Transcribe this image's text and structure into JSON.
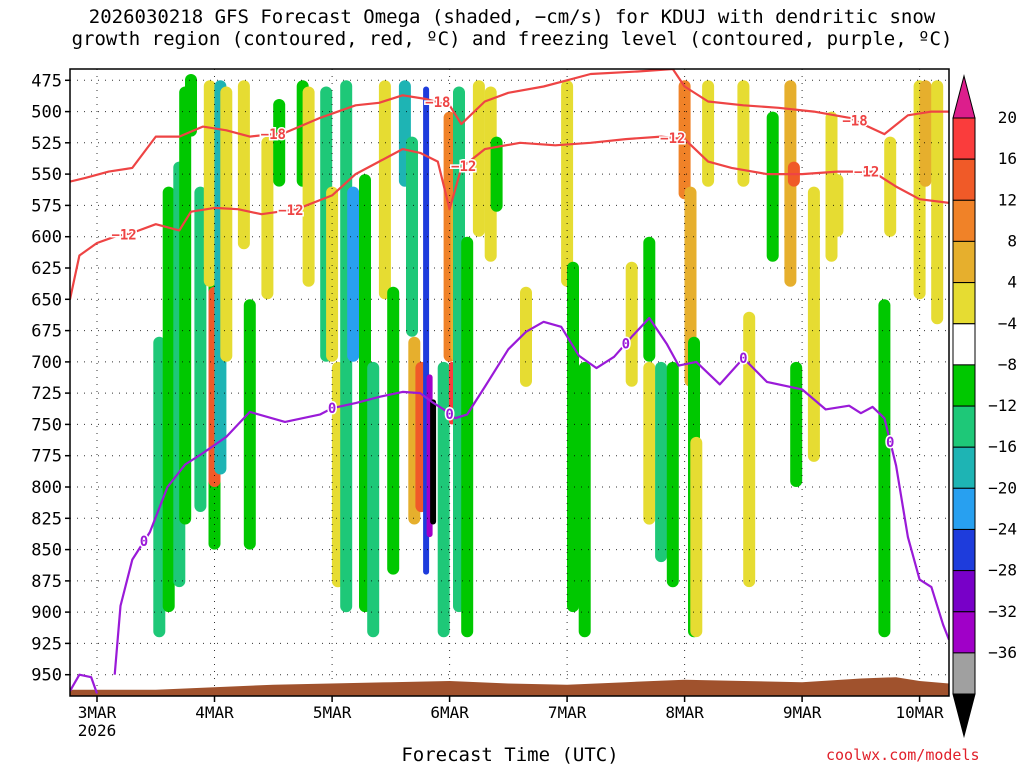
{
  "title_line1": "2026030218 GFS Forecast Omega (shaded, −cm/s) for KDUJ with dendritic snow",
  "title_line2": "growth region (contoured, red, ºC) and freezing level (contoured, purple, ºC)",
  "credit": "coolwx.com/models",
  "colors": {
    "omega_pos_4": "#e6dc32",
    "omega_pos_8": "#e6af2d",
    "omega_pos_12": "#f08228",
    "omega_pos_16": "#f05a28",
    "omega_pos_20": "#fa3c3c",
    "omega_pos_top": "#dc1e8c",
    "omega_neg_4": "#00c800",
    "omega_neg_8": "#1ec878",
    "omega_neg_12": "#1eb4b4",
    "omega_neg_16": "#28a0f0",
    "omega_neg_20": "#1e3cdc",
    "omega_neg_24": "#7800c8",
    "omega_neg_28": "#a000c8",
    "omega_neg_32": "#a0a0a0",
    "omega_neg_bottom": "#000000",
    "dgz_contour": "#ee4444",
    "freezing_contour": "#9a1ad8",
    "terrain": "#a0522d"
  },
  "chart_data": {
    "type": "heatmap",
    "title": "2026030218 GFS Forecast Omega (shaded, −cm/s) for KDUJ with dendritic snow growth region (contoured, red, ºC) and freezing level (contoured, purple, ºC)",
    "xlabel": "Forecast Time (UTC)",
    "ylabel": "",
    "x_ticks": [
      "3MAR\n2026",
      "4MAR",
      "5MAR",
      "6MAR",
      "7MAR",
      "8MAR",
      "9MAR",
      "10MAR"
    ],
    "x_tick_days": [
      3,
      4,
      5,
      6,
      7,
      8,
      9,
      10
    ],
    "xlim_days": [
      2.77,
      10.25
    ],
    "y_ticks": [
      475,
      500,
      525,
      550,
      575,
      600,
      625,
      650,
      675,
      700,
      725,
      750,
      775,
      800,
      825,
      850,
      875,
      900,
      925,
      950
    ],
    "ylim": [
      967,
      466
    ],
    "grid": true,
    "colorbar": {
      "labels": [
        "20",
        "16",
        "12",
        "8",
        "4",
        "−4",
        "−8",
        "−12",
        "−16",
        "−20",
        "−24",
        "−28",
        "−32",
        "−36"
      ],
      "units": "−cm/s"
    },
    "contours": [
      {
        "name": "-12",
        "label": "−12",
        "x": [
          2.77,
          2.85,
          3.0,
          3.15,
          3.3,
          3.5,
          3.7,
          3.8,
          4.0,
          4.2,
          4.4,
          4.7,
          5.0,
          5.2,
          5.4,
          5.6,
          5.75,
          5.9,
          6.0,
          6.1,
          6.3,
          6.6,
          6.9,
          7.2,
          7.5,
          7.8,
          8.0,
          8.2,
          8.4,
          8.7,
          9.0,
          9.3,
          9.6,
          9.8,
          10.0,
          10.25
        ],
        "y": [
          650,
          615,
          605,
          600,
          597,
          590,
          595,
          580,
          577,
          578,
          582,
          578,
          567,
          550,
          540,
          530,
          533,
          540,
          578,
          545,
          530,
          525,
          527,
          525,
          522,
          520,
          522,
          540,
          545,
          550,
          550,
          548,
          548,
          560,
          570,
          573
        ],
        "label_days": [
          3.23,
          4.65,
          6.12,
          7.9,
          9.55
        ]
      },
      {
        "name": "-18",
        "label": "−18",
        "x": [
          2.77,
          2.9,
          3.1,
          3.3,
          3.5,
          3.7,
          3.9,
          4.1,
          4.3,
          4.6,
          4.9,
          5.2,
          5.4,
          5.6,
          5.8,
          6.0,
          6.1,
          6.3,
          6.5,
          6.8,
          7.0,
          7.2,
          7.6,
          7.9,
          8.0,
          8.2,
          8.5,
          8.8,
          9.1,
          9.4,
          9.7,
          9.9,
          10.1,
          10.25
        ],
        "y": [
          556,
          553,
          548,
          545,
          520,
          520,
          512,
          515,
          520,
          517,
          505,
          495,
          493,
          487,
          490,
          495,
          510,
          492,
          485,
          480,
          475,
          470,
          468,
          466,
          480,
          492,
          495,
          497,
          500,
          505,
          518,
          503,
          500,
          500
        ],
        "label_days": [
          4.5,
          5.9,
          9.45
        ]
      },
      {
        "name": "0",
        "label": "0",
        "x": [
          3.15,
          3.2,
          3.3,
          3.45,
          3.6,
          3.75,
          3.9,
          4.1,
          4.3,
          4.6,
          4.9,
          5.0,
          5.2,
          5.4,
          5.6,
          5.75,
          5.85,
          5.95,
          6.05,
          6.15,
          6.3,
          6.5,
          6.65,
          6.8,
          6.95,
          7.1,
          7.25,
          7.4,
          7.55,
          7.7,
          7.85,
          7.95,
          8.1,
          8.3,
          8.5,
          8.7,
          9.0,
          9.2,
          9.4,
          9.5,
          9.6,
          9.7,
          9.8,
          9.9,
          10.0,
          10.1,
          10.2,
          10.25
        ],
        "y": [
          950,
          895,
          858,
          836,
          800,
          782,
          773,
          760,
          740,
          748,
          742,
          737,
          733,
          728,
          724,
          725,
          732,
          738,
          745,
          742,
          720,
          690,
          676,
          668,
          672,
          695,
          705,
          696,
          680,
          665,
          686,
          703,
          700,
          718,
          697,
          716,
          722,
          738,
          735,
          741,
          736,
          745,
          783,
          840,
          874,
          880,
          910,
          922
        ],
        "label_days": [
          3.4,
          5.0,
          6.0,
          7.5,
          8.5,
          9.75
        ]
      },
      {
        "name": "0_low",
        "label": "",
        "x": [
          2.77,
          2.85,
          2.95,
          3.0
        ],
        "y": [
          963,
          950,
          952,
          965
        ],
        "label_days": []
      }
    ],
    "omega_cells": [
      {
        "day": 3.53,
        "p1": 680,
        "p2": 920,
        "value": -8
      },
      {
        "day": 3.61,
        "p1": 560,
        "p2": 900,
        "value": -6
      },
      {
        "day": 3.7,
        "p1": 540,
        "p2": 880,
        "value": -10
      },
      {
        "day": 3.75,
        "p1": 480,
        "p2": 830,
        "value": -6
      },
      {
        "day": 3.88,
        "p1": 560,
        "p2": 820,
        "value": -8
      },
      {
        "day": 4.0,
        "p1": 600,
        "p2": 850,
        "value": -6
      },
      {
        "day": 3.8,
        "p1": 470,
        "p2": 520,
        "value": -6
      },
      {
        "day": 3.96,
        "p1": 475,
        "p2": 640,
        "value": 6
      },
      {
        "day": 4.0,
        "p1": 640,
        "p2": 800,
        "value": 18
      },
      {
        "day": 4.05,
        "p1": 475,
        "p2": 790,
        "value": -12
      },
      {
        "day": 4.1,
        "p1": 480,
        "p2": 700,
        "value": 6
      },
      {
        "day": 4.25,
        "p1": 475,
        "p2": 610,
        "value": 6
      },
      {
        "day": 4.3,
        "p1": 650,
        "p2": 850,
        "value": -6
      },
      {
        "day": 4.45,
        "p1": 520,
        "p2": 650,
        "value": 5
      },
      {
        "day": 4.55,
        "p1": 490,
        "p2": 560,
        "value": -6
      },
      {
        "day": 4.75,
        "p1": 475,
        "p2": 560,
        "value": -6
      },
      {
        "day": 4.8,
        "p1": 480,
        "p2": 640,
        "value": 5
      },
      {
        "day": 4.95,
        "p1": 480,
        "p2": 700,
        "value": -8
      },
      {
        "day": 5.0,
        "p1": 560,
        "p2": 700,
        "value": 5
      },
      {
        "day": 5.05,
        "p1": 700,
        "p2": 880,
        "value": 5
      },
      {
        "day": 5.12,
        "p1": 475,
        "p2": 900,
        "value": -8
      },
      {
        "day": 5.18,
        "p1": 560,
        "p2": 700,
        "value": -18
      },
      {
        "day": 5.28,
        "p1": 550,
        "p2": 900,
        "value": -6
      },
      {
        "day": 5.35,
        "p1": 700,
        "p2": 920,
        "value": -8
      },
      {
        "day": 5.45,
        "p1": 475,
        "p2": 650,
        "value": 6
      },
      {
        "day": 5.52,
        "p1": 640,
        "p2": 870,
        "value": -6
      },
      {
        "day": 5.62,
        "p1": 475,
        "p2": 560,
        "value": -14
      },
      {
        "day": 5.68,
        "p1": 520,
        "p2": 680,
        "value": -10
      },
      {
        "day": 5.7,
        "p1": 680,
        "p2": 830,
        "value": 10
      },
      {
        "day": 5.76,
        "p1": 700,
        "p2": 820,
        "value": 16
      },
      {
        "day": 5.8,
        "p1": 480,
        "p2": 870,
        "value": -22
      },
      {
        "day": 5.83,
        "p1": 710,
        "p2": 840,
        "value": -30
      },
      {
        "day": 5.86,
        "p1": 730,
        "p2": 830,
        "value": -38
      },
      {
        "day": 5.95,
        "p1": 700,
        "p2": 920,
        "value": -8
      },
      {
        "day": 6.0,
        "p1": 500,
        "p2": 700,
        "value": 14
      },
      {
        "day": 6.02,
        "p1": 700,
        "p2": 750,
        "value": 20
      },
      {
        "day": 6.06,
        "p1": 570,
        "p2": 700,
        "value": 10
      },
      {
        "day": 6.08,
        "p1": 480,
        "p2": 900,
        "value": -8
      },
      {
        "day": 6.15,
        "p1": 600,
        "p2": 920,
        "value": -6
      },
      {
        "day": 6.25,
        "p1": 475,
        "p2": 600,
        "value": 6
      },
      {
        "day": 6.35,
        "p1": 480,
        "p2": 620,
        "value": 5
      },
      {
        "day": 6.4,
        "p1": 520,
        "p2": 580,
        "value": -6
      },
      {
        "day": 6.65,
        "p1": 640,
        "p2": 720,
        "value": 5
      },
      {
        "day": 7.0,
        "p1": 475,
        "p2": 640,
        "value": 5
      },
      {
        "day": 7.05,
        "p1": 620,
        "p2": 900,
        "value": -6
      },
      {
        "day": 7.15,
        "p1": 700,
        "p2": 920,
        "value": -6
      },
      {
        "day": 7.55,
        "p1": 620,
        "p2": 720,
        "value": 5
      },
      {
        "day": 7.7,
        "p1": 600,
        "p2": 700,
        "value": -6
      },
      {
        "day": 7.7,
        "p1": 700,
        "p2": 830,
        "value": 5
      },
      {
        "day": 7.8,
        "p1": 700,
        "p2": 860,
        "value": -8
      },
      {
        "day": 7.9,
        "p1": 700,
        "p2": 880,
        "value": -6
      },
      {
        "day": 8.0,
        "p1": 475,
        "p2": 570,
        "value": 14
      },
      {
        "day": 8.05,
        "p1": 560,
        "p2": 720,
        "value": 10
      },
      {
        "day": 8.08,
        "p1": 680,
        "p2": 920,
        "value": -6
      },
      {
        "day": 8.1,
        "p1": 760,
        "p2": 920,
        "value": 6
      },
      {
        "day": 8.2,
        "p1": 475,
        "p2": 560,
        "value": 6
      },
      {
        "day": 8.5,
        "p1": 475,
        "p2": 560,
        "value": 6
      },
      {
        "day": 8.55,
        "p1": 660,
        "p2": 880,
        "value": 5
      },
      {
        "day": 8.75,
        "p1": 500,
        "p2": 620,
        "value": -6
      },
      {
        "day": 8.9,
        "p1": 475,
        "p2": 640,
        "value": 8
      },
      {
        "day": 8.93,
        "p1": 540,
        "p2": 560,
        "value": 16
      },
      {
        "day": 8.95,
        "p1": 700,
        "p2": 800,
        "value": -6
      },
      {
        "day": 9.1,
        "p1": 560,
        "p2": 780,
        "value": 5
      },
      {
        "day": 9.25,
        "p1": 500,
        "p2": 620,
        "value": 5
      },
      {
        "day": 9.3,
        "p1": 550,
        "p2": 600,
        "value": 6
      },
      {
        "day": 9.75,
        "p1": 520,
        "p2": 600,
        "value": 5
      },
      {
        "day": 9.7,
        "p1": 650,
        "p2": 920,
        "value": -6
      },
      {
        "day": 10.0,
        "p1": 475,
        "p2": 650,
        "value": 6
      },
      {
        "day": 10.05,
        "p1": 475,
        "p2": 560,
        "value": 10
      },
      {
        "day": 10.15,
        "p1": 475,
        "p2": 670,
        "value": 6
      }
    ],
    "terrain": {
      "x": [
        2.77,
        3.5,
        4.5,
        5.5,
        6.0,
        6.5,
        7.0,
        7.5,
        8.0,
        8.5,
        9.0,
        9.5,
        9.8,
        10.0,
        10.25
      ],
      "y": [
        962,
        962,
        958,
        956,
        955,
        957,
        958,
        956,
        954,
        955,
        956,
        953,
        952,
        955,
        957
      ]
    }
  }
}
